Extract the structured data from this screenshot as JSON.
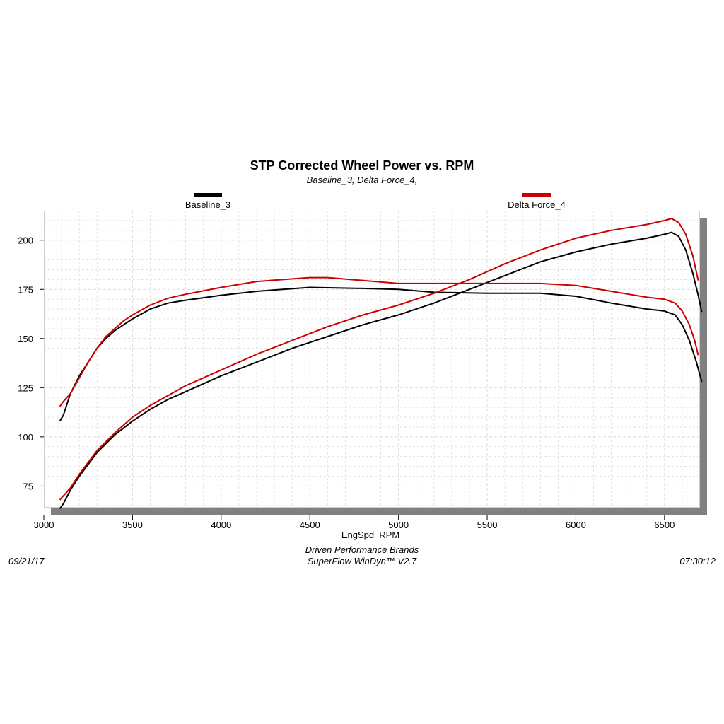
{
  "chart_data": {
    "type": "line",
    "title": "STP Corrected Wheel Power vs. RPM",
    "subtitle": "Baseline_3, Delta Force_4,",
    "xlabel": "EngSpd  RPM",
    "ylabel": "",
    "xlim": [
      3000,
      6700
    ],
    "ylim": [
      64,
      215
    ],
    "x_ticks": [
      3000,
      3500,
      4000,
      4500,
      5000,
      5500,
      6000,
      6500
    ],
    "y_ticks": [
      75,
      100,
      125,
      150,
      175,
      200
    ],
    "grid": true,
    "legend_position": "top",
    "series": [
      {
        "name": "Baseline_3",
        "color": "#000000",
        "curves": [
          {
            "x": [
              3090,
              3110,
              3150,
              3200,
              3250,
              3300,
              3350,
              3400,
              3450,
              3500,
              3600,
              3700,
              3800,
              4000,
              4200,
              4500,
              4800,
              5000,
              5200,
              5500,
              5800,
              6000,
              6200,
              6400,
              6500,
              6560,
              6600,
              6640,
              6680,
              6710
            ],
            "y": [
              108,
              111,
              122,
              131,
              138,
              145,
              150,
              154,
              157,
              160,
              165,
              168,
              169.5,
              172,
              174,
              176,
              175.5,
              175,
              173.5,
              173,
              173,
              171.5,
              168,
              165,
              164,
              162,
              157,
              149,
              138,
              128
            ]
          },
          {
            "x": [
              3090,
              3110,
              3150,
              3200,
              3250,
              3300,
              3400,
              3500,
              3600,
              3700,
              3800,
              4000,
              4200,
              4400,
              4600,
              4800,
              5000,
              5200,
              5400,
              5600,
              5800,
              6000,
              6200,
              6400,
              6500,
              6540,
              6580,
              6620,
              6660,
              6690,
              6710
            ],
            "y": [
              63.5,
              66,
              73,
              80,
              86,
              92,
              101,
              108,
              114,
              119,
              123,
              131,
              138,
              145,
              151,
              157,
              162,
              168,
              175,
              182,
              189,
              194,
              198,
              201,
              203,
              204,
              202,
              195,
              183,
              172,
              163.5
            ]
          }
        ]
      },
      {
        "name": "Delta Force_4",
        "color": "#cc0000",
        "curves": [
          {
            "x": [
              3090,
              3110,
              3150,
              3200,
              3250,
              3300,
              3350,
              3400,
              3450,
              3500,
              3600,
              3700,
              3800,
              4000,
              4200,
              4500,
              4600,
              4800,
              5000,
              5200,
              5500,
              5800,
              6000,
              6200,
              6400,
              6500,
              6560,
              6600,
              6640,
              6670,
              6690
            ],
            "y": [
              115.5,
              118,
              122,
              130,
              138,
              145,
              151,
              155,
              159,
              162,
              167,
              170.5,
              172.5,
              176,
              179,
              181,
              181,
              179.5,
              178,
              178,
              178,
              178,
              177,
              174,
              171,
              170,
              168,
              164,
              157,
              149,
              141.5
            ]
          },
          {
            "x": [
              3090,
              3110,
              3150,
              3200,
              3250,
              3300,
              3400,
              3500,
              3600,
              3700,
              3800,
              4000,
              4200,
              4400,
              4600,
              4800,
              5000,
              5200,
              5400,
              5600,
              5800,
              6000,
              6200,
              6400,
              6500,
              6540,
              6580,
              6620,
              6660,
              6690
            ],
            "y": [
              68,
              70,
              74,
              81,
              87,
              93,
              102,
              110,
              116,
              121,
              126,
              134,
              142,
              149,
              156,
              162,
              167,
              173,
              180,
              188,
              195,
              201,
              205,
              208,
              210,
              211,
              209,
              203,
              192,
              179.5
            ]
          }
        ]
      }
    ]
  },
  "footer": {
    "company": "Driven Performance Brands",
    "software": "SuperFlow WinDyn™  V2.7",
    "date": "09/21/17",
    "time": "07:30:12"
  },
  "colors": {
    "baseline": "#000000",
    "delta": "#cc0000",
    "grid": "#dcdcdc",
    "shadow": "#808080"
  }
}
